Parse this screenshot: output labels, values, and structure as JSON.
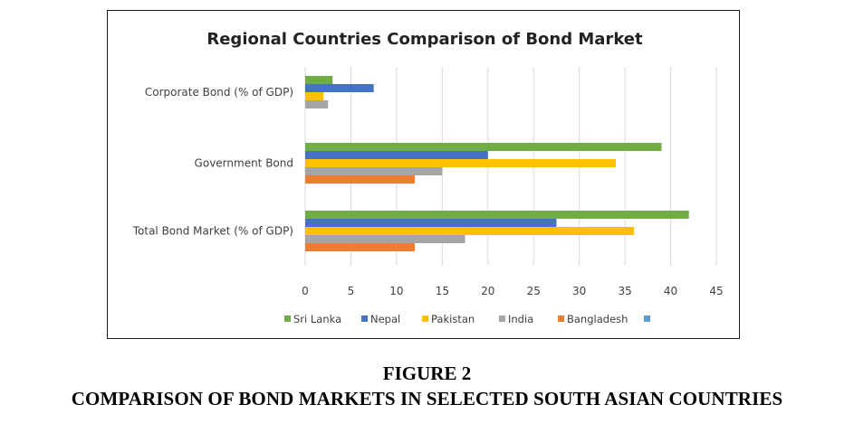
{
  "caption": {
    "figure": "FIGURE 2",
    "title": "COMPARISON OF BOND MARKETS IN SELECTED SOUTH ASIAN COUNTRIES"
  },
  "chart_data": {
    "type": "bar",
    "orientation": "horizontal",
    "title": "Regional Countries  Comparison  of Bond Market",
    "categories": [
      "Corporate Bond  (% of GDP)",
      "Government Bond",
      "Total Bond Market  (% of GDP)"
    ],
    "series": [
      {
        "name": "Sri Lanka",
        "color": "#70ad47",
        "values": [
          3,
          39,
          42
        ]
      },
      {
        "name": "Nepal",
        "color": "#4472c4",
        "values": [
          7.5,
          20,
          27.5
        ]
      },
      {
        "name": "Pakistan",
        "color": "#ffc000",
        "values": [
          2,
          34,
          36
        ]
      },
      {
        "name": "India",
        "color": "#a5a5a5",
        "values": [
          2.5,
          15,
          17.5
        ]
      },
      {
        "name": "Bangladesh",
        "color": "#ed7d31",
        "values": [
          null,
          12,
          12
        ]
      },
      {
        "name": "",
        "color": "#5b9bd5",
        "values": [
          null,
          null,
          null
        ]
      }
    ],
    "xlim": [
      0,
      45
    ],
    "xticks": [
      0,
      5,
      10,
      15,
      20,
      25,
      30,
      35,
      40,
      45
    ],
    "grid": true,
    "legend": "bottom"
  }
}
